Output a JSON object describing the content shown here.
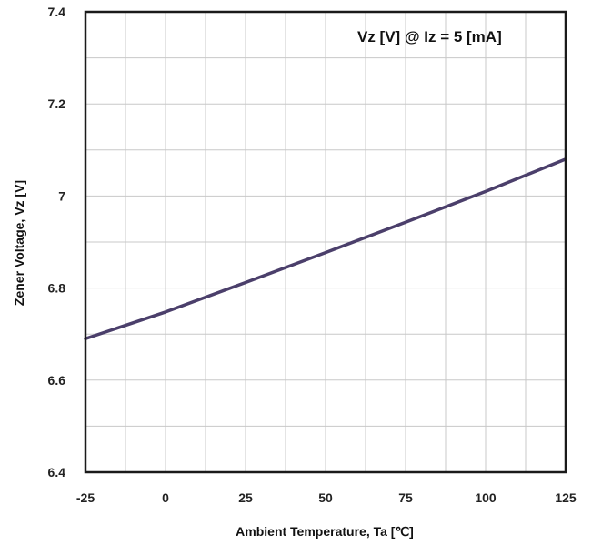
{
  "chart_data": {
    "type": "line",
    "title": "",
    "annotation": "Vz [V] @ Iz = 5 [mA]",
    "xlabel": "Ambient Temperature, Ta [℃]",
    "ylabel": "Zener Voltage, Vz [V]",
    "xlim": [
      -25,
      125
    ],
    "ylim": [
      6.4,
      7.4
    ],
    "xticks": [
      -25,
      0,
      25,
      50,
      75,
      100,
      125
    ],
    "yticks": [
      6.4,
      6.6,
      6.8,
      7,
      7.2,
      7.4
    ],
    "xtick_labels": [
      "-25",
      "0",
      "25",
      "50",
      "75",
      "100",
      "125"
    ],
    "ytick_labels": [
      "6.4",
      "6.6",
      "6.8",
      "7",
      "7.2",
      "7.4"
    ],
    "x_minor_step": 12.5,
    "y_minor_step": 0.1,
    "grid": true,
    "series": [
      {
        "color": "#4b3f6b",
        "x": [
          -25,
          0,
          25,
          50,
          75,
          100,
          125
        ],
        "y": [
          6.69,
          6.748,
          6.812,
          6.877,
          6.943,
          7.01,
          7.08
        ]
      }
    ]
  }
}
